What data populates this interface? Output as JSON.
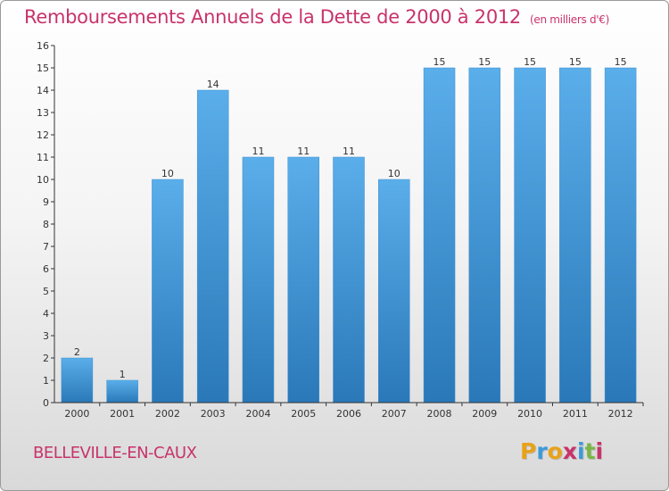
{
  "title": "Remboursements Annuels de la Dette de 2000 à 2012",
  "subtitle": "(en milliers d'€)",
  "commune": "BELLEVILLE-EN-CAUX",
  "logo": {
    "text": "Proxiti",
    "letters": [
      "P",
      "r",
      "o",
      "x",
      "i",
      "t",
      "i"
    ],
    "colors": [
      "#e8a21a",
      "#3a9ad9",
      "#e8a21a",
      "#c8336a",
      "#3a9ad9",
      "#7ab648",
      "#c8336a"
    ]
  },
  "colors": {
    "accent": "#c8336a",
    "bar_top": "#5aaeea",
    "bar_bottom": "#2a78b8",
    "axis": "#333333"
  },
  "chart_data": {
    "type": "bar",
    "categories": [
      "2000",
      "2001",
      "2002",
      "2003",
      "2004",
      "2005",
      "2006",
      "2007",
      "2008",
      "2009",
      "2010",
      "2011",
      "2012"
    ],
    "values": [
      2,
      1,
      10,
      14,
      11,
      11,
      11,
      10,
      15,
      15,
      15,
      15,
      15
    ],
    "value_labels": [
      "2",
      "1",
      "10",
      "14",
      "11",
      "11",
      "11",
      "10",
      "15",
      "15",
      "15",
      "15",
      "15"
    ],
    "yticks": [
      "0",
      "1",
      "2",
      "3",
      "4",
      "5",
      "6",
      "7",
      "8",
      "9",
      "10",
      "11",
      "12",
      "13",
      "14",
      "15",
      "16"
    ],
    "ylim": [
      0,
      16
    ],
    "title": "Remboursements Annuels de la Dette de 2000 à 2012",
    "xlabel": "",
    "ylabel": "",
    "grid": false
  }
}
